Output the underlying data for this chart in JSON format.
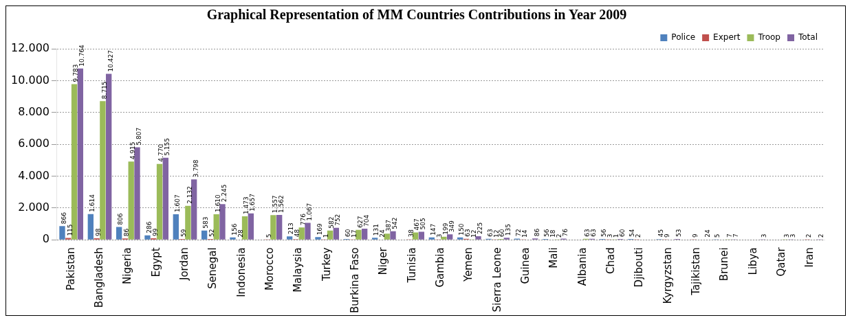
{
  "chart_data": {
    "type": "bar",
    "title": "Graphical Representation of MM Countries Contributions in Year 2009",
    "categories": [
      "Pakistan",
      "Bangladesh",
      "Nigeria",
      "Egypt",
      "Jordan",
      "Senegal",
      "Indonesia",
      "Morocco",
      "Malaysia",
      "Turkey",
      "Burkina Faso",
      "Niger",
      "Tunisia",
      "Gambia",
      "Yemen",
      "Sierra Leone",
      "Guinea",
      "Mali",
      "Albania",
      "Chad",
      "Djibouti",
      "Kyrgyzstan",
      "Tajikistan",
      "Brunei",
      "Libya",
      "Qatar",
      "Iran"
    ],
    "series": [
      {
        "name": "Police",
        "color": "#4f81bd",
        "values": [
          866,
          1614,
          806,
          286,
          1607,
          583,
          156,
          null,
          213,
          169,
          60,
          131,
          null,
          147,
          150,
          63,
          72,
          56,
          null,
          56,
          54,
          45,
          null,
          5,
          null,
          null,
          null
        ],
        "value_labels": [
          "866",
          "1.614",
          "806",
          "286",
          "1.607",
          "583",
          "156",
          null,
          "213",
          "169",
          "60",
          "131",
          null,
          "147",
          "150",
          "63",
          "72",
          "56",
          null,
          "56",
          "54",
          "45",
          null,
          "5",
          null,
          null,
          null
        ]
      },
      {
        "name": "Expert",
        "color": "#c0504d",
        "values": [
          115,
          98,
          86,
          99,
          59,
          52,
          28,
          5,
          48,
          1,
          17,
          24,
          38,
          3,
          63,
          12,
          14,
          18,
          null,
          3,
          2,
          9,
          9,
          null,
          null,
          null,
          2
        ],
        "value_labels": [
          "115",
          "98",
          "86",
          "99",
          "59",
          "52",
          "28",
          "5",
          "48",
          "1",
          "17",
          "24",
          "38",
          "3",
          "63",
          "12",
          "14",
          "18",
          null,
          "3",
          "2",
          "9",
          "9",
          null,
          null,
          null,
          "2"
        ]
      },
      {
        "name": "Troop",
        "color": "#9bbb59",
        "values": [
          9783,
          8715,
          4915,
          4770,
          2132,
          1610,
          1473,
          1557,
          776,
          582,
          627,
          387,
          467,
          199,
          12,
          60,
          null,
          2,
          63,
          1,
          null,
          null,
          null,
          7,
          null,
          3,
          null
        ],
        "value_labels": [
          "9.783",
          "8.715",
          "4.915",
          "4.770",
          "2.132",
          "1.610",
          "1.473",
          "1.557",
          "776",
          "582",
          "627",
          "387",
          "467",
          "199",
          "12",
          "60",
          null,
          "2",
          "63",
          "1",
          null,
          null,
          null,
          "7",
          null,
          "3",
          null
        ]
      },
      {
        "name": "Total",
        "color": "#8064a2",
        "values": [
          10764,
          10427,
          5807,
          5155,
          3798,
          2245,
          1657,
          1562,
          1067,
          752,
          704,
          542,
          505,
          349,
          225,
          135,
          86,
          76,
          63,
          60,
          null,
          53,
          24,
          7,
          3,
          3,
          2
        ],
        "value_labels": [
          "10.764",
          "10.427",
          "5.807",
          "5.155",
          "3.798",
          "2.245",
          "1.657",
          "1.562",
          "1.067",
          "752",
          "704",
          "542",
          "505",
          "349",
          "225",
          "135",
          "86",
          "76",
          "63",
          "60",
          null,
          "53",
          "24",
          "7",
          "3",
          "3",
          "2"
        ]
      }
    ],
    "ylim": [
      0,
      12000
    ],
    "yticks": [
      {
        "value": 0,
        "label": "0"
      },
      {
        "value": 2000,
        "label": "2.000"
      },
      {
        "value": 4000,
        "label": "4.000"
      },
      {
        "value": 6000,
        "label": "6.000"
      },
      {
        "value": 8000,
        "label": "8.000"
      },
      {
        "value": 10000,
        "label": "10.000"
      },
      {
        "value": 12000,
        "label": "12.000"
      }
    ],
    "grid": "y",
    "legend": "top right"
  }
}
